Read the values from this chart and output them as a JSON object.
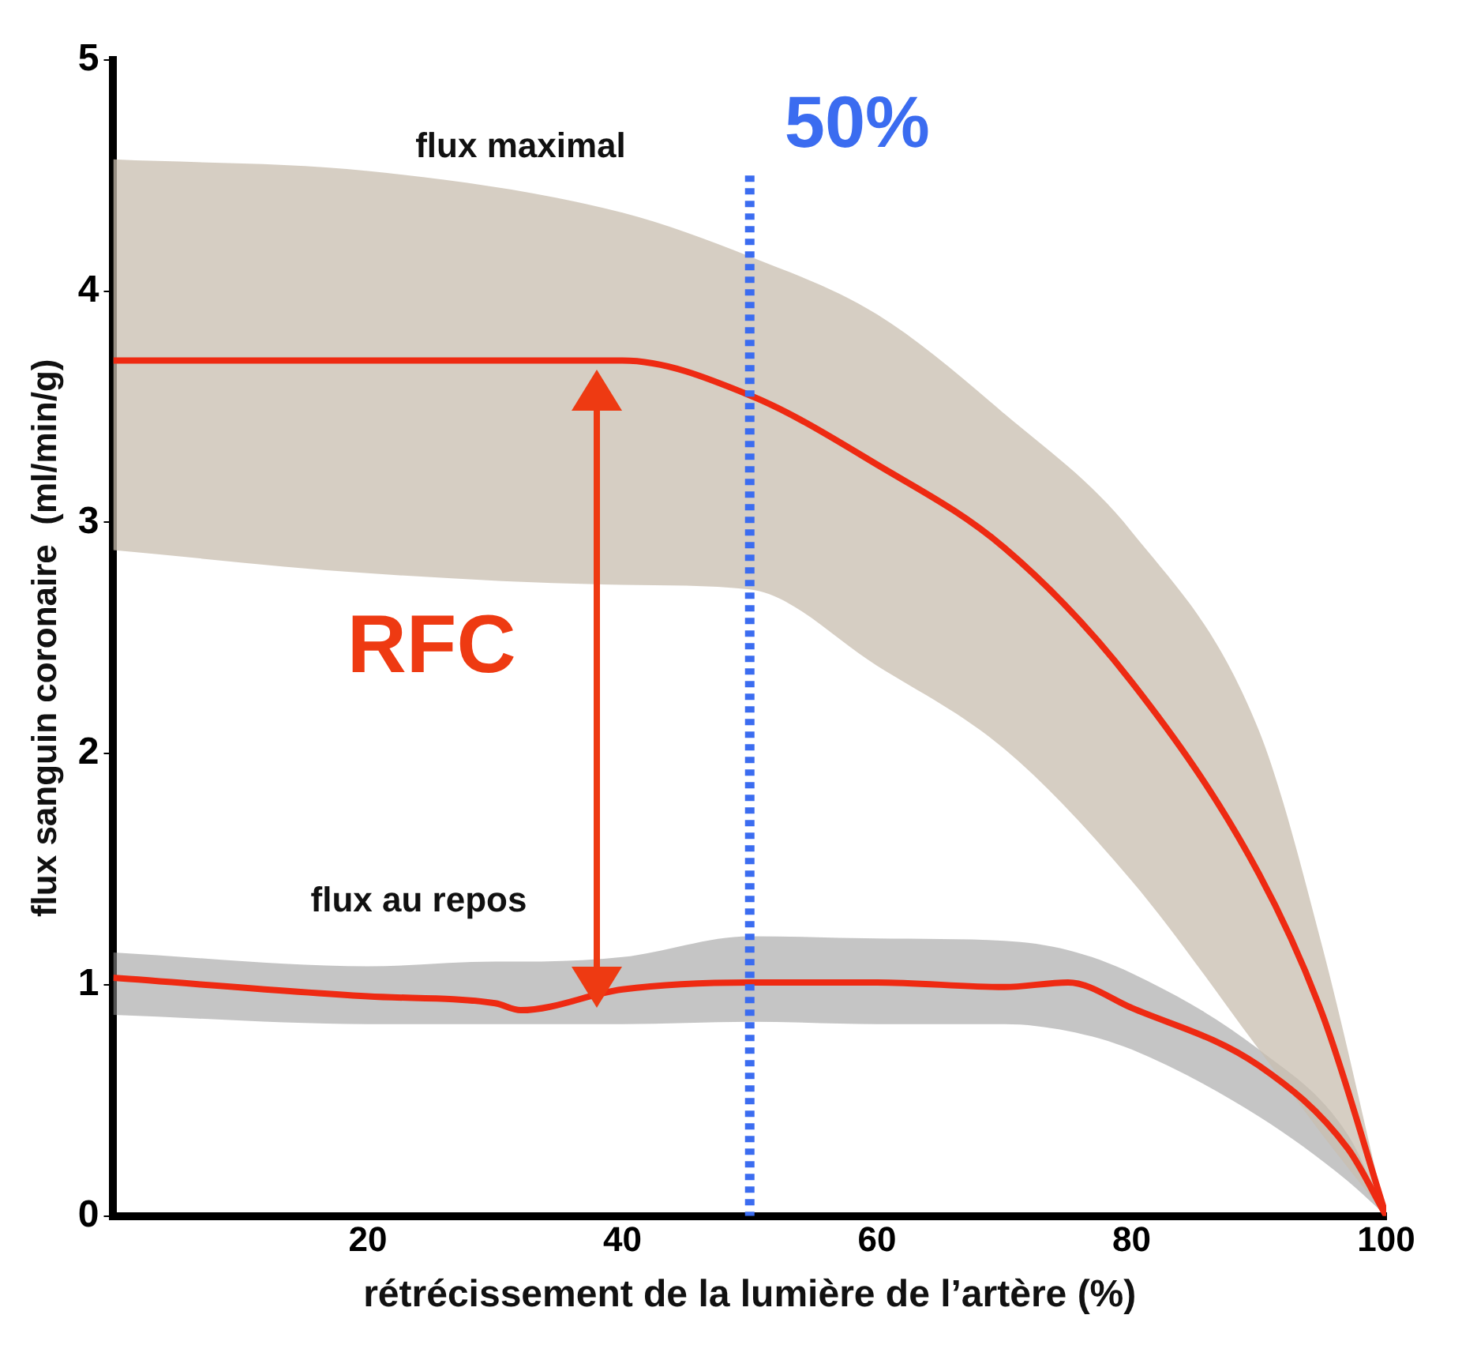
{
  "chart_data": {
    "type": "line",
    "xlabel": "rétrécissement de la lumière de l’artère (%)",
    "ylabel": "flux sanguin coronaire  (ml/min/g)",
    "xlim": [
      0,
      100
    ],
    "xticks": [
      20,
      40,
      60,
      80,
      100
    ],
    "ylim": [
      0,
      5
    ],
    "yticks": [
      0,
      1,
      2,
      3,
      4,
      5
    ],
    "grid": false,
    "legend": false,
    "marker": "none",
    "line_style": "solid",
    "series": [
      {
        "color": "#ee2a12",
        "x": [
          0,
          20,
          40,
          50,
          60,
          70,
          80,
          90,
          95,
          100
        ],
        "values": [
          3.7,
          3.7,
          3.7,
          3.55,
          3.25,
          2.89,
          2.31,
          1.48,
          0.87,
          0
        ],
        "upper": [
          4.57,
          4.52,
          4.34,
          4.15,
          3.9,
          3.47,
          2.96,
          2.1,
          1.16,
          0
        ],
        "lower": [
          2.88,
          2.78,
          2.73,
          2.71,
          2.38,
          2.02,
          1.45,
          0.72,
          0.35,
          0
        ]
      },
      {
        "color": "#ee2a12",
        "x": [
          0,
          20,
          30,
          32,
          40,
          50,
          60,
          70,
          75,
          80,
          90,
          97,
          100
        ],
        "values": [
          1.03,
          0.95,
          0.92,
          0.89,
          0.98,
          1.01,
          1.01,
          0.99,
          1.01,
          0.9,
          0.65,
          0.29,
          0
        ],
        "upper": [
          1.14,
          1.08,
          1.1,
          1.1,
          1.12,
          1.21,
          1.2,
          1.19,
          1.15,
          1.05,
          0.72,
          0.35,
          0
        ],
        "lower": [
          0.87,
          0.83,
          0.83,
          0.83,
          0.83,
          0.84,
          0.83,
          0.83,
          0.8,
          0.72,
          0.43,
          0.15,
          0
        ]
      }
    ],
    "ref_lines": [
      {
        "axis": "x",
        "value": 50,
        "label": "50%",
        "color": "#3b6cf0",
        "line_style": "dotted"
      }
    ],
    "annotations": [
      "RFC",
      "flux maximal",
      "flux au repos"
    ]
  }
}
